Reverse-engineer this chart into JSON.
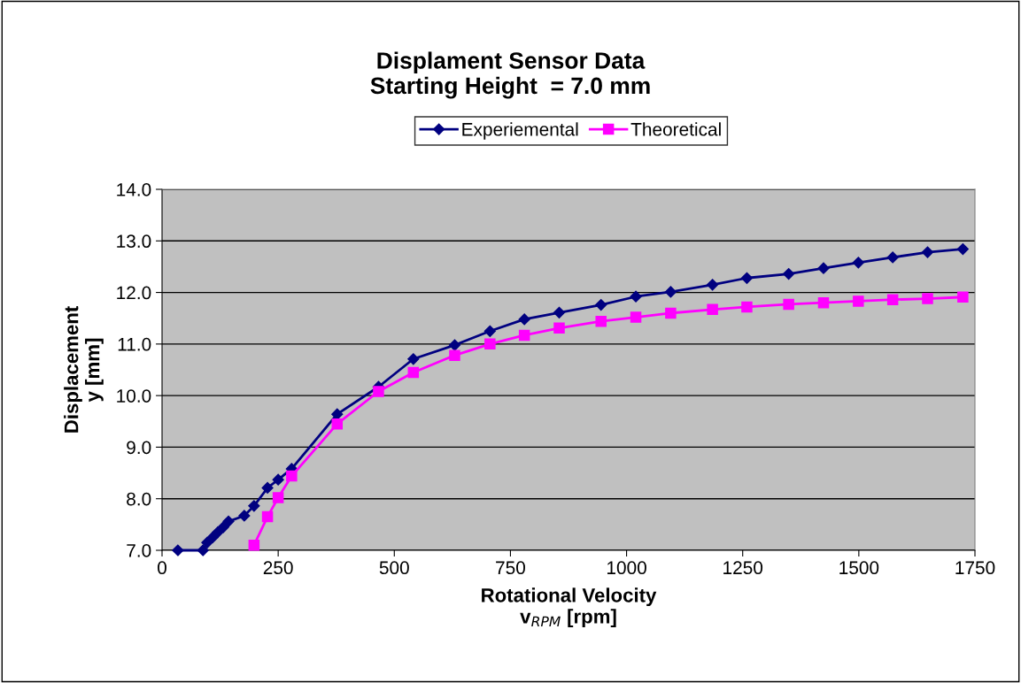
{
  "chart_data": {
    "type": "line",
    "title": "Displament Sensor Data\nStarting Height  = 7.0 mm",
    "xlabel": "Rotational Velocity\nv$_{RPM}$ [rpm]",
    "ylabel": "Displacement\ny [mm]",
    "series": [
      {
        "name": "Experiemental",
        "color": "#000080",
        "marker": "diamond",
        "x": [
          34,
          88,
          97,
          109,
          120,
          132,
          143,
          177,
          198,
          227,
          250,
          279,
          377,
          466,
          541,
          630,
          706,
          780,
          855,
          945,
          1020,
          1095,
          1185,
          1259,
          1349,
          1424,
          1499,
          1573,
          1648,
          1724
        ],
        "values": [
          7.0,
          7.0,
          7.15,
          7.25,
          7.35,
          7.45,
          7.56,
          7.67,
          7.86,
          8.21,
          8.37,
          8.58,
          9.64,
          10.17,
          10.71,
          10.98,
          11.25,
          11.48,
          11.61,
          11.76,
          11.92,
          12.01,
          12.15,
          12.28,
          12.36,
          12.47,
          12.58,
          12.68,
          12.78,
          12.84
        ]
      },
      {
        "name": "Theoretical",
        "color": "#ff00ff",
        "marker": "square",
        "x": [
          198,
          227,
          250,
          279,
          377,
          466,
          541,
          630,
          706,
          780,
          855,
          945,
          1020,
          1095,
          1185,
          1259,
          1349,
          1424,
          1499,
          1573,
          1648,
          1724
        ],
        "values": [
          7.1,
          7.65,
          8.02,
          8.44,
          9.45,
          10.08,
          10.45,
          10.78,
          11.0,
          11.17,
          11.31,
          11.44,
          11.52,
          11.6,
          11.67,
          11.72,
          11.77,
          11.8,
          11.83,
          11.86,
          11.88,
          11.91
        ]
      }
    ],
    "xlim": [
      0,
      1750
    ],
    "xticks": [
      0,
      250,
      500,
      750,
      1000,
      1250,
      1500,
      1750
    ],
    "ylim": [
      7,
      14
    ],
    "yticks": [
      {
        "value": 7,
        "label": "7.0"
      },
      {
        "value": 8,
        "label": "8.0"
      },
      {
        "value": 9,
        "label": "9.0"
      },
      {
        "value": 10,
        "label": "10.0"
      },
      {
        "value": 11,
        "label": "11.0"
      },
      {
        "value": 12,
        "label": "12.0"
      },
      {
        "value": 13,
        "label": "13.0"
      },
      {
        "value": 14,
        "label": "14.0"
      }
    ],
    "grid": "y",
    "legend": "top",
    "line_style": "solid"
  }
}
